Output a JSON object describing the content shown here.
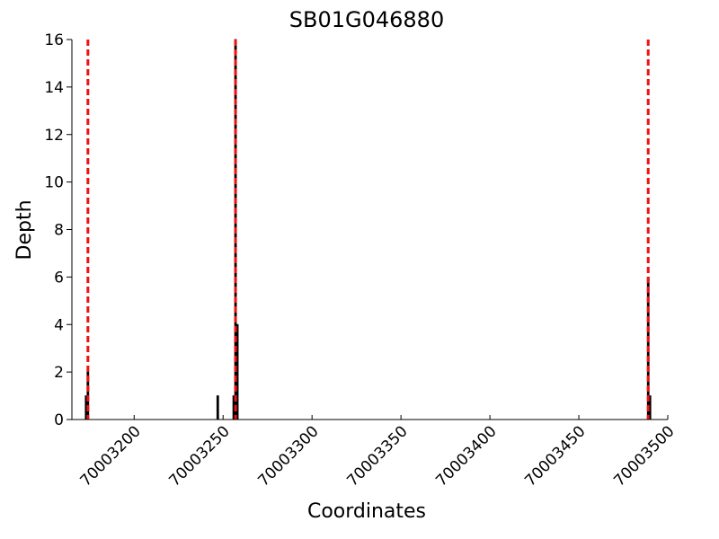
{
  "chart_data": {
    "type": "bar",
    "title": "SB01G046880",
    "x_label": "Coordinates",
    "y_label": "Depth",
    "x": [
      70003173,
      70003174,
      70003247,
      70003256,
      70003257,
      70003258,
      70003489,
      70003490
    ],
    "values": [
      1,
      2,
      1,
      1,
      16,
      4,
      6,
      1
    ],
    "color": "#000000",
    "vlines": [
      70003174,
      70003257,
      70003489
    ],
    "vline_color": "#ee1111",
    "xlim": [
      70003165,
      70003500
    ],
    "xticks": [
      70003200,
      70003250,
      70003300,
      70003350,
      70003400,
      70003450,
      70003500
    ],
    "ylim": [
      0,
      16
    ],
    "yticks": [
      0,
      2,
      4,
      6,
      8,
      10,
      12,
      14,
      16
    ],
    "grid": false
  }
}
